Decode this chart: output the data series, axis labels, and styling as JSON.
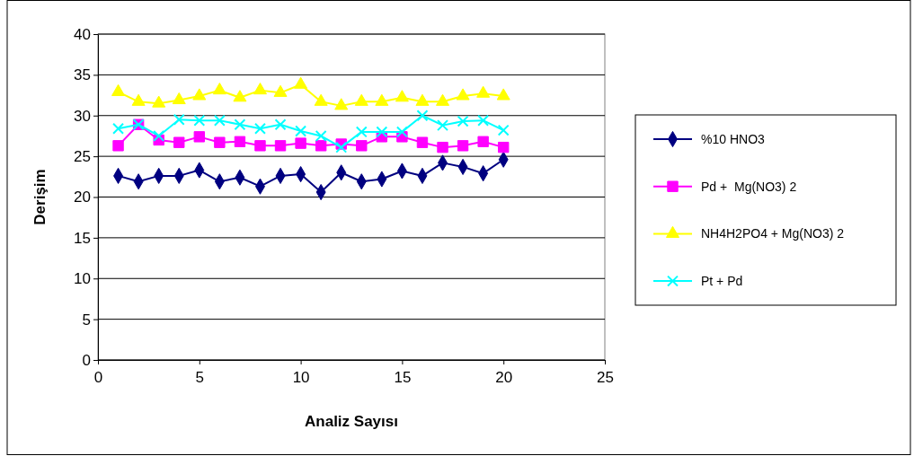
{
  "chart_data": {
    "type": "line",
    "xlabel": "Analiz Sayısı",
    "ylabel": "Derişim",
    "x": [
      1,
      2,
      3,
      4,
      5,
      6,
      7,
      8,
      9,
      10,
      11,
      12,
      13,
      14,
      15,
      16,
      17,
      18,
      19,
      20
    ],
    "xlim": [
      0,
      25
    ],
    "xticks": [
      0,
      5,
      10,
      15,
      20,
      25
    ],
    "ylim": [
      0,
      40
    ],
    "yticks": [
      0,
      5,
      10,
      15,
      20,
      25,
      30,
      35,
      40
    ],
    "grid": "y",
    "legend": "right",
    "series": [
      {
        "name": "%10 HNO3",
        "color": "#000080",
        "marker": "diamond",
        "values": [
          22.6,
          21.9,
          22.6,
          22.6,
          23.3,
          21.9,
          22.4,
          21.3,
          22.6,
          22.8,
          20.6,
          23.0,
          21.9,
          22.2,
          23.2,
          22.6,
          24.2,
          23.7,
          22.9,
          24.6
        ]
      },
      {
        "name": "Pd +  Mg(NO3) 2",
        "color": "#ff00ff",
        "marker": "square",
        "values": [
          26.3,
          28.9,
          27.0,
          26.7,
          27.4,
          26.7,
          26.8,
          26.3,
          26.3,
          26.6,
          26.3,
          26.5,
          26.3,
          27.4,
          27.4,
          26.7,
          26.1,
          26.3,
          26.8,
          26.1
        ]
      },
      {
        "name": "NH4H2PO4 + Mg(NO3) 2",
        "color": "#ffff00",
        "marker": "triangle",
        "values": [
          32.9,
          31.7,
          31.5,
          31.9,
          32.4,
          33.1,
          32.2,
          33.1,
          32.8,
          33.8,
          31.7,
          31.2,
          31.7,
          31.7,
          32.2,
          31.7,
          31.7,
          32.4,
          32.7,
          32.4
        ]
      },
      {
        "name": "Pt + Pd",
        "color": "#00ffff",
        "marker": "cross",
        "values": [
          28.4,
          28.9,
          27.5,
          29.5,
          29.4,
          29.4,
          28.9,
          28.4,
          28.9,
          28.1,
          27.5,
          26.1,
          28.0,
          28.0,
          28.0,
          30.0,
          28.8,
          29.3,
          29.4,
          28.2
        ]
      }
    ]
  }
}
